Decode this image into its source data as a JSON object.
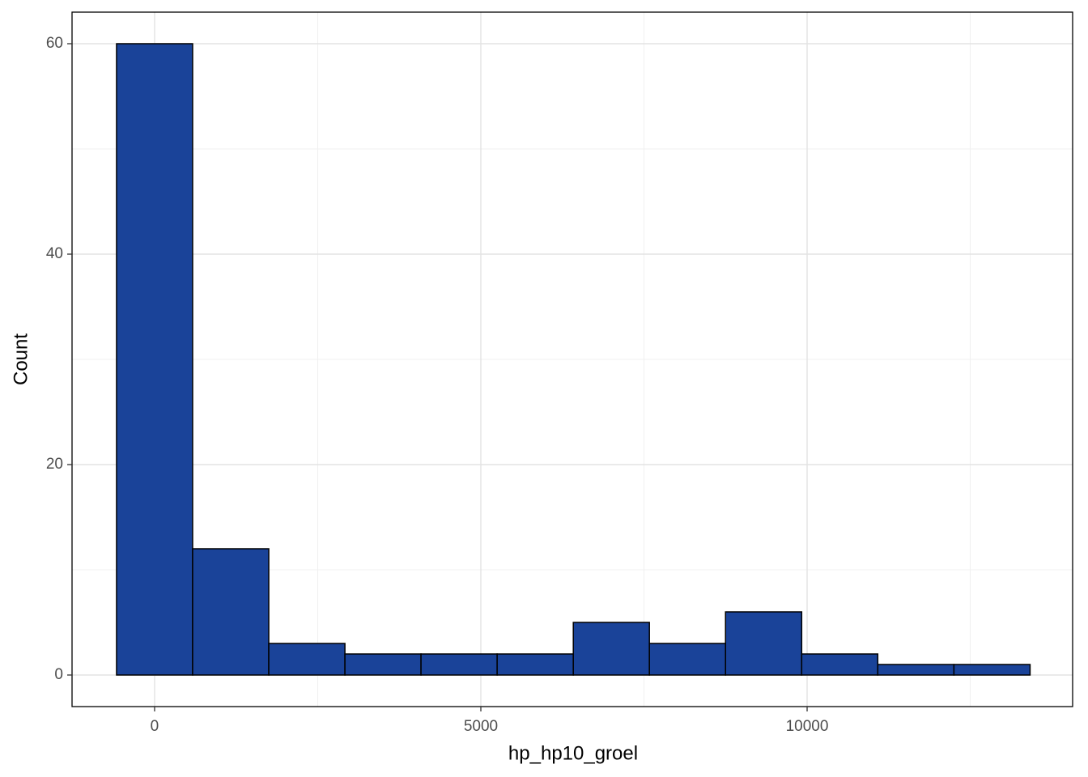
{
  "chart_data": {
    "type": "histogram",
    "x_label": "hp_hp10_groel",
    "y_label": "Count",
    "bins": [
      -583,
      583,
      1750,
      2917,
      4083,
      5250,
      6417,
      7583,
      8750,
      9917,
      11083,
      12250,
      13417
    ],
    "values": [
      60,
      12,
      3,
      2,
      2,
      2,
      5,
      3,
      6,
      2,
      1,
      1
    ],
    "color": "#1a4399",
    "edge_color": "#000000",
    "xlim": [
      -1265,
      14069
    ],
    "xticks": [
      0,
      5000,
      10000
    ],
    "ylim": [
      -3,
      63
    ],
    "yticks": [
      0,
      20,
      40,
      60
    ],
    "x_minor_grid": [
      2500,
      7500,
      12500
    ],
    "y_minor_grid": [
      10,
      30,
      50
    ],
    "grid": true
  }
}
